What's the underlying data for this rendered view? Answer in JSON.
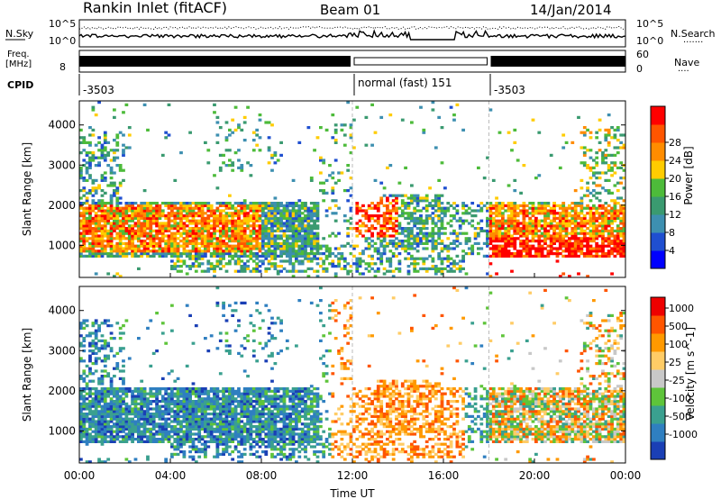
{
  "header": {
    "title": "Rankin Inlet (fitACF)",
    "beam": "Beam 01",
    "date": "14/Jan/2014"
  },
  "top_panel": {
    "left_label": "N.Sky",
    "right_label": "N.Search",
    "right_dots": "·······",
    "y_ticks_left": [
      "10^5",
      "10^0"
    ],
    "y_ticks_right": [
      "10^5",
      "10^0"
    ]
  },
  "freq_panel": {
    "left_label_1": "Freq.",
    "left_label_2": "[MHz]",
    "left_tick": "8",
    "right_label": "Nave",
    "right_dots": "····",
    "right_ticks": [
      "60",
      "0"
    ]
  },
  "cpid": {
    "label": "CPID",
    "segments": [
      {
        "text": "-3503"
      },
      {
        "text": "normal (fast) 151"
      },
      {
        "text": "-3503"
      }
    ]
  },
  "chart_data": [
    {
      "type": "heatmap",
      "quantity": "Power",
      "ylabel": "Slant Range [km]",
      "ylim": [
        200,
        4600
      ],
      "y_ticks": [
        "1000",
        "2000",
        "3000",
        "4000"
      ],
      "colorbar": {
        "label": "Power [dB]",
        "ticks": [
          "4",
          "8",
          "12",
          "16",
          "20",
          "24",
          "28"
        ],
        "colors": [
          "#0000ff",
          "#1f4fd0",
          "#3d8fb0",
          "#3a9a70",
          "#4dbb3a",
          "#ffcc00",
          "#ff8c00",
          "#ff5500",
          "#ff0000"
        ]
      }
    },
    {
      "type": "heatmap",
      "quantity": "Velocity",
      "ylabel": "Slant Range [km]",
      "ylim": [
        200,
        4600
      ],
      "y_ticks": [
        "1000",
        "2000",
        "3000",
        "4000"
      ],
      "colorbar": {
        "label": "Velocity [m s^-1]",
        "ticks": [
          "1000",
          "500",
          "100",
          "25",
          "-25",
          "-100",
          "-500",
          "-1000"
        ],
        "colors": [
          "#1a3fb5",
          "#2f7fc0",
          "#3aa08f",
          "#5ec43a",
          "#c8c8c8",
          "#ffcc66",
          "#ff9900",
          "#ff5500",
          "#ee0000"
        ]
      }
    }
  ],
  "x_axis": {
    "label": "Time UT",
    "ticks": [
      "00:00",
      "04:00",
      "08:00",
      "12:00",
      "16:00",
      "20:00",
      "00:00"
    ],
    "range_hours": [
      0,
      24
    ]
  }
}
